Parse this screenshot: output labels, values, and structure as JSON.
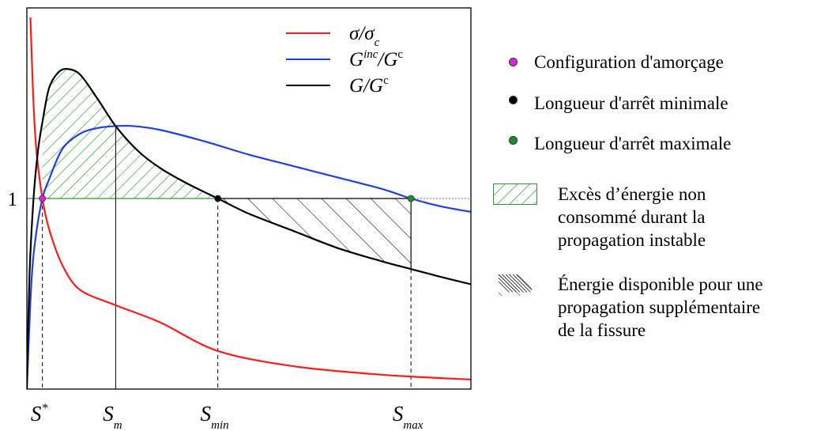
{
  "chart_data": {
    "type": "line",
    "xlim": [
      0,
      10
    ],
    "ylim": [
      0,
      2.0
    ],
    "y_ticks": [
      {
        "value": 1,
        "label": "1"
      }
    ],
    "x_markers": [
      {
        "key": "s_star",
        "base": "S",
        "sup": "*",
        "sub": "",
        "x": 0.35
      },
      {
        "key": "s_m",
        "base": "S",
        "sup": "",
        "sub": "m",
        "x": 2.0
      },
      {
        "key": "s_min",
        "base": "S",
        "sup": "",
        "sub": "min",
        "x": 4.3
      },
      {
        "key": "s_max",
        "base": "S",
        "sup": "",
        "sub": "max",
        "x": 8.65
      }
    ],
    "series": [
      {
        "key": "sigma",
        "name_base": "σ/σ",
        "name_sub": "c",
        "name_sup": "",
        "color": "#ff1a1a",
        "x": [
          0.08,
          0.12,
          0.16,
          0.22,
          0.35,
          0.5,
          0.8,
          1.2,
          2.0,
          3.0,
          4.3,
          6.0,
          8.0,
          10.0
        ],
        "y": [
          1.95,
          1.68,
          1.45,
          1.24,
          1.0,
          0.84,
          0.65,
          0.52,
          0.44,
          0.35,
          0.2,
          0.12,
          0.075,
          0.05
        ]
      },
      {
        "key": "ginc",
        "name_base": "G",
        "name_sub": "",
        "name_sup": "inc",
        "name_tail": "/G",
        "name_tail_sup": "c",
        "color": "#1f3fe6",
        "x": [
          0.0,
          0.1,
          0.2,
          0.35,
          0.5,
          0.8,
          1.2,
          1.6,
          2.0,
          2.4,
          3.0,
          4.0,
          5.0,
          6.0,
          7.0,
          8.0,
          8.65,
          9.3,
          10.0
        ],
        "y": [
          0.0,
          0.55,
          0.8,
          1.0,
          1.1,
          1.26,
          1.34,
          1.37,
          1.38,
          1.38,
          1.36,
          1.3,
          1.23,
          1.17,
          1.11,
          1.05,
          1.0,
          0.96,
          0.93
        ]
      },
      {
        "key": "g",
        "name_base": "G",
        "name_sub": "",
        "name_sup": "",
        "name_tail": "/G",
        "name_tail_sup": "c",
        "color": "#000000",
        "x": [
          0.0,
          0.06,
          0.15,
          0.25,
          0.35,
          0.5,
          0.7,
          0.9,
          1.2,
          1.6,
          2.0,
          2.5,
          3.0,
          3.6,
          4.3,
          5.0,
          6.0,
          7.0,
          8.0,
          8.65,
          9.3,
          10.0
        ],
        "y": [
          0.0,
          0.6,
          1.0,
          1.25,
          1.4,
          1.58,
          1.66,
          1.68,
          1.65,
          1.52,
          1.38,
          1.25,
          1.16,
          1.08,
          1.0,
          0.92,
          0.83,
          0.74,
          0.67,
          0.63,
          0.59,
          0.55
        ]
      }
    ],
    "markers": [
      {
        "key": "amorcage",
        "x": 0.35,
        "y": 1.0,
        "color": "#e020e0"
      },
      {
        "key": "arret_min",
        "x": 4.3,
        "y": 1.0,
        "color": "#000000"
      },
      {
        "key": "arret_max",
        "x": 8.65,
        "y": 1.0,
        "color": "#15902a"
      }
    ],
    "legend_placement": "top-right",
    "grid": false
  },
  "side_legend": {
    "amorcage": {
      "label": "Configuration d'amorçage",
      "color": "#e020e0"
    },
    "arret_min": {
      "label": "Longueur d'arrêt minimale",
      "color": "#000000"
    },
    "arret_max": {
      "label": "Longueur d'arrêt maximale",
      "color": "#15902a"
    },
    "exces": {
      "lines": [
        "Excès d’énergie non",
        "consommé durant la",
        "propagation instable"
      ],
      "color": "#2a9a2a"
    },
    "disponible": {
      "lines": [
        "Énergie disponible pour une",
        "propagation supplémentaire",
        "de la fissure"
      ],
      "color": "#000000"
    }
  }
}
